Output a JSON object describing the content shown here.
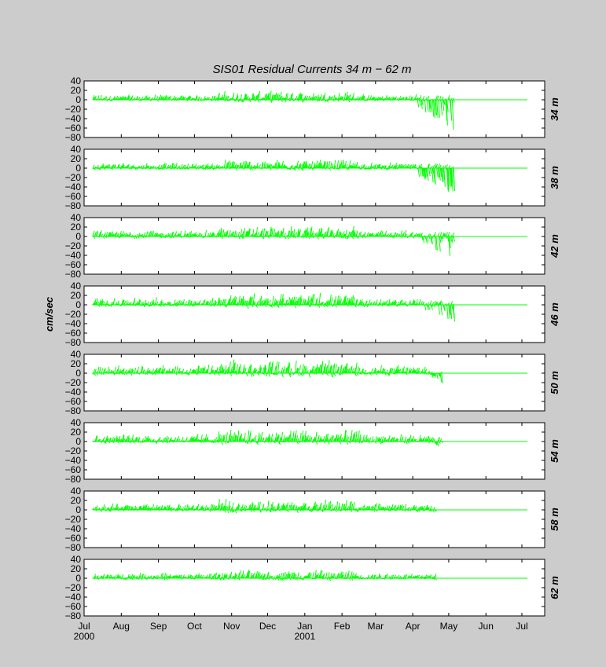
{
  "chart_data": {
    "type": "line",
    "title": "SIS01   Residual Currents  34 m − 62 m",
    "ylabel": "cm/sec",
    "ylim": [
      -80,
      40
    ],
    "yticks": [
      "40",
      "20",
      "0",
      "−20",
      "−40",
      "−60",
      "−80"
    ],
    "xlim": [
      "2000-07-01",
      "2001-07-20"
    ],
    "x_ticks": [
      {
        "label": "Jul",
        "date": "2000-07-01",
        "year": "2000"
      },
      {
        "label": "Aug",
        "date": "2000-08-01"
      },
      {
        "label": "Sep",
        "date": "2000-09-01"
      },
      {
        "label": "Oct",
        "date": "2000-10-01"
      },
      {
        "label": "Nov",
        "date": "2000-11-01"
      },
      {
        "label": "Dec",
        "date": "2000-12-01"
      },
      {
        "label": "Jan",
        "date": "2001-01-01",
        "year": "2001"
      },
      {
        "label": "Feb",
        "date": "2001-02-01"
      },
      {
        "label": "Mar",
        "date": "2001-03-01"
      },
      {
        "label": "Apr",
        "date": "2001-04-01"
      },
      {
        "label": "May",
        "date": "2001-05-01"
      },
      {
        "label": "Jun",
        "date": "2001-06-01"
      },
      {
        "label": "Jul",
        "date": "2001-07-01"
      }
    ],
    "line_color": "#00ff00",
    "panels": [
      {
        "depth_label": "34 m",
        "data_start": "2000-07-08",
        "data_end": "2001-05-05",
        "amplitude": 6,
        "tail_min": -68,
        "tail_start": "2001-04-05"
      },
      {
        "depth_label": "38 m",
        "data_start": "2000-07-08",
        "data_end": "2001-05-05",
        "amplitude": 6,
        "tail_min": -58,
        "tail_start": "2001-04-05"
      },
      {
        "depth_label": "42 m",
        "data_start": "2000-07-08",
        "data_end": "2001-05-05",
        "amplitude": 7,
        "tail_min": -48,
        "tail_start": "2001-04-08"
      },
      {
        "depth_label": "46 m",
        "data_start": "2000-07-08",
        "data_end": "2001-05-05",
        "amplitude": 8,
        "tail_min": -38,
        "tail_start": "2001-04-10"
      },
      {
        "depth_label": "50 m",
        "data_start": "2000-07-08",
        "data_end": "2001-04-25",
        "amplitude": 9,
        "tail_min": -22,
        "tail_start": "2001-04-12"
      },
      {
        "depth_label": "54 m",
        "data_start": "2000-07-08",
        "data_end": "2001-04-25",
        "amplitude": 8,
        "tail_min": -14,
        "tail_start": "2001-04-14"
      },
      {
        "depth_label": "58 m",
        "data_start": "2000-07-08",
        "data_end": "2001-04-20",
        "amplitude": 7,
        "tail_min": -8,
        "tail_start": "2001-04-14"
      },
      {
        "depth_label": "62 m",
        "data_start": "2000-07-08",
        "data_end": "2001-04-20",
        "amplitude": 6,
        "tail_min": -6,
        "tail_start": "2001-04-16"
      }
    ]
  }
}
